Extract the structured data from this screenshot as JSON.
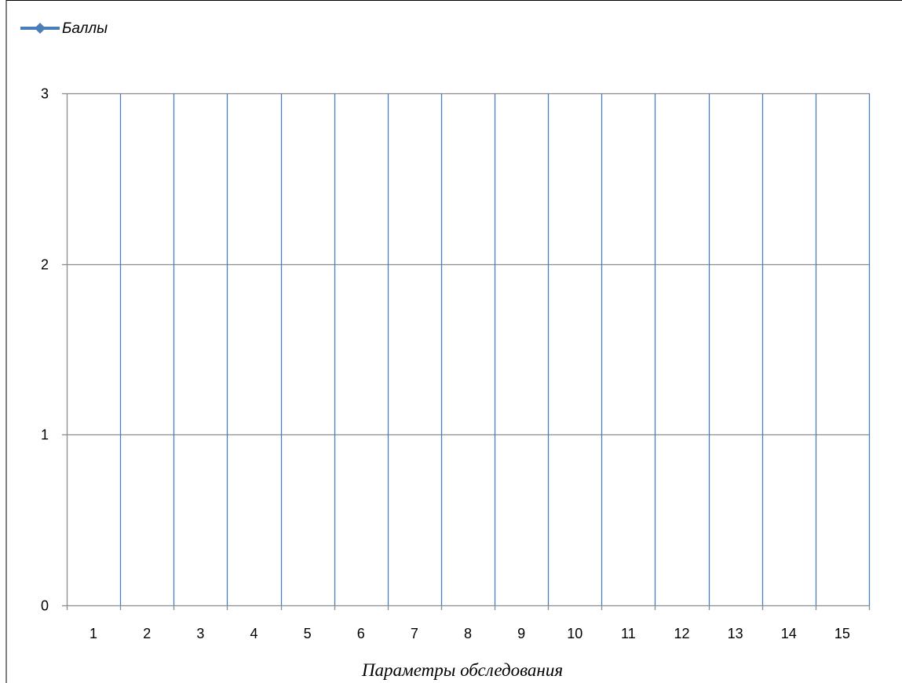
{
  "chart_data": {
    "type": "line",
    "categories": [
      "1",
      "2",
      "3",
      "4",
      "5",
      "6",
      "7",
      "8",
      "9",
      "10",
      "11",
      "12",
      "13",
      "14",
      "15"
    ],
    "series": [
      {
        "name": "Баллы",
        "values": [
          null,
          null,
          null,
          null,
          null,
          null,
          null,
          null,
          null,
          null,
          null,
          null,
          null,
          null,
          null
        ],
        "color": "#4A7EBB",
        "marker": "diamond"
      }
    ],
    "xlabel": "Параметры обследования",
    "ylabel": "",
    "ylim": [
      0,
      3
    ],
    "yticks": [
      0,
      1,
      2,
      3
    ],
    "grid": {
      "horizontal": true,
      "vertical": true,
      "horizontal_color": "#8C8C8C",
      "vertical_color": "#4A7EBB"
    },
    "legend": {
      "placement": "top-left"
    },
    "colors": {
      "axis": "#8C8C8C",
      "series": "#4A7EBB",
      "frame": "#000000"
    }
  }
}
